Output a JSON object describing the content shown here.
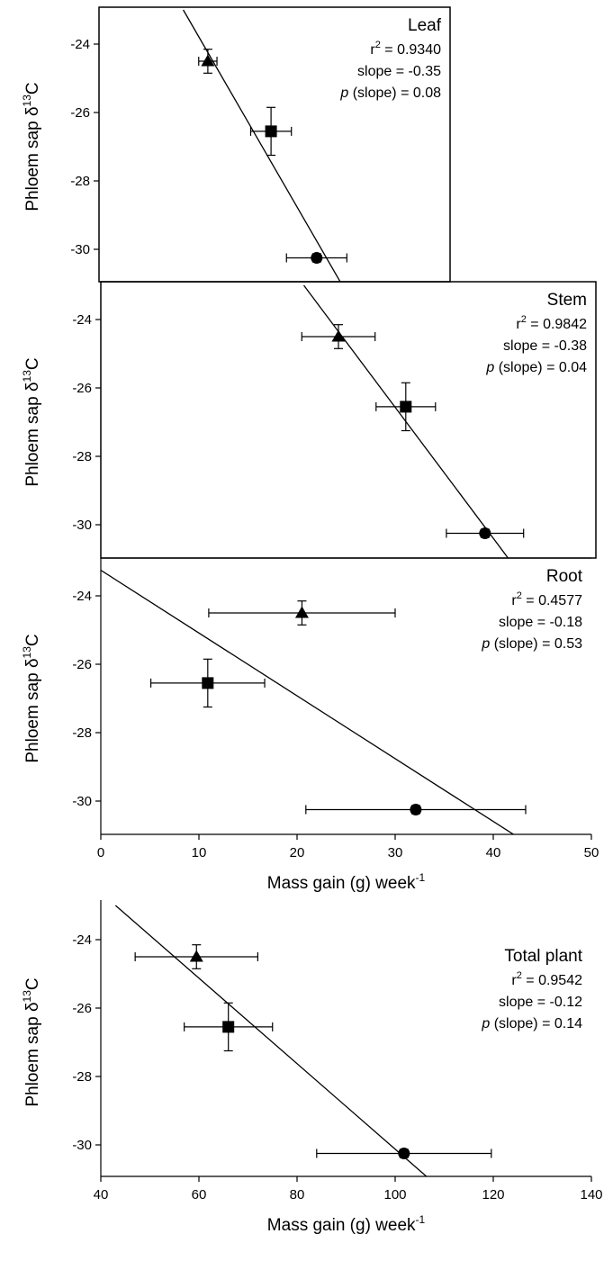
{
  "chart_data": [
    {
      "type": "scatter",
      "panel": "Leaf",
      "title": "Leaf",
      "stats": {
        "r2_label": "r",
        "r2_sup": "2",
        "r2_value": " = 0.9340",
        "slope": "slope = -0.35",
        "p_label": "p",
        "p_value": " (slope) = 0.08"
      },
      "ylabel_main": "Phloem sap δ",
      "ylabel_sup": "13",
      "ylabel_end": "C",
      "xlim": [
        0,
        50
      ],
      "ylim": [
        -31,
        -23
      ],
      "yticks": [
        -24,
        -26,
        -28,
        -30
      ],
      "points": [
        {
          "marker": "triangle",
          "x": 15.5,
          "y": -24.5,
          "xerr": 1.3,
          "yerr": 0.35
        },
        {
          "marker": "square",
          "x": 24.5,
          "y": -26.55,
          "xerr": 2.9,
          "yerr": 0.7
        },
        {
          "marker": "circle",
          "x": 31.0,
          "y": -30.25,
          "xerr": 4.3,
          "yerr": 0.12
        }
      ],
      "fit": {
        "x1": 12.0,
        "y1": -23.0,
        "x2": 34.5,
        "y2": -31.0
      }
    },
    {
      "type": "scatter",
      "panel": "Stem",
      "title": "Stem",
      "stats": {
        "r2_label": "r",
        "r2_sup": "2",
        "r2_value": " = 0.9842",
        "slope": "slope = -0.38",
        "p_label": "p",
        "p_value": " (slope) = 0.04"
      },
      "ylabel_main": "Phloem sap δ",
      "ylabel_sup": "13",
      "ylabel_end": "C",
      "xlim": [
        0,
        50
      ],
      "ylim": [
        -31,
        -23
      ],
      "yticks": [
        -24,
        -26,
        -28,
        -30
      ],
      "points": [
        {
          "marker": "triangle",
          "x": 24.0,
          "y": -24.5,
          "xerr": 3.7,
          "yerr": 0.35
        },
        {
          "marker": "square",
          "x": 30.8,
          "y": -26.55,
          "xerr": 3.0,
          "yerr": 0.7
        },
        {
          "marker": "circle",
          "x": 38.8,
          "y": -30.25,
          "xerr": 3.9,
          "yerr": 0.12
        }
      ],
      "fit": {
        "x1": 20.5,
        "y1": -23.0,
        "x2": 41.2,
        "y2": -31.0
      }
    },
    {
      "type": "scatter",
      "panel": "Root",
      "title": "Root",
      "stats": {
        "r2_label": "r",
        "r2_sup": "2",
        "r2_value": " = 0.4577",
        "slope": "slope = -0.18",
        "p_label": "p",
        "p_value": " (slope) = 0.53"
      },
      "ylabel_main": "Phloem sap δ",
      "ylabel_sup": "13",
      "ylabel_end": "C",
      "xlabel_main": "Mass gain (g) week",
      "xlabel_sup": "-1",
      "xlim": [
        0,
        50
      ],
      "ylim": [
        -31,
        -23
      ],
      "xticks": [
        0,
        10,
        20,
        30,
        40,
        50
      ],
      "yticks": [
        -24,
        -26,
        -28,
        -30
      ],
      "points": [
        {
          "marker": "triangle",
          "x": 20.5,
          "y": -24.5,
          "xerr": 9.5,
          "yerr": 0.35
        },
        {
          "marker": "square",
          "x": 10.9,
          "y": -26.55,
          "xerr": 5.8,
          "yerr": 0.7
        },
        {
          "marker": "circle",
          "x": 32.1,
          "y": -30.25,
          "xerr": 11.2,
          "yerr": 0.12
        }
      ],
      "fit": {
        "x1": 0.0,
        "y1": -23.25,
        "x2": 42.2,
        "y2": -31.0
      }
    },
    {
      "type": "scatter",
      "panel": "Total plant",
      "title": "Total plant",
      "stats": {
        "r2_label": "r",
        "r2_sup": "2",
        "r2_value": " = 0.9542",
        "slope": "slope = -0.12",
        "p_label": "p",
        "p_value": " (slope) = 0.14"
      },
      "ylabel_main": "Phloem sap δ",
      "ylabel_sup": "13",
      "ylabel_end": "C",
      "xlabel_main": "Mass gain (g) week",
      "xlabel_sup": "-1",
      "xlim": [
        40,
        140
      ],
      "ylim": [
        -31,
        -23
      ],
      "xticks": [
        40,
        60,
        80,
        100,
        120,
        140
      ],
      "yticks": [
        -24,
        -26,
        -28,
        -30
      ],
      "points": [
        {
          "marker": "triangle",
          "x": 59.5,
          "y": -24.5,
          "xerr": 12.5,
          "yerr": 0.35
        },
        {
          "marker": "square",
          "x": 66.0,
          "y": -26.55,
          "xerr": 9.0,
          "yerr": 0.7
        },
        {
          "marker": "circle",
          "x": 101.8,
          "y": -30.25,
          "xerr": 17.8,
          "yerr": 0.12
        }
      ],
      "fit": {
        "x1": 43.0,
        "y1": -23.0,
        "x2": 107.0,
        "y2": -31.0
      }
    }
  ]
}
